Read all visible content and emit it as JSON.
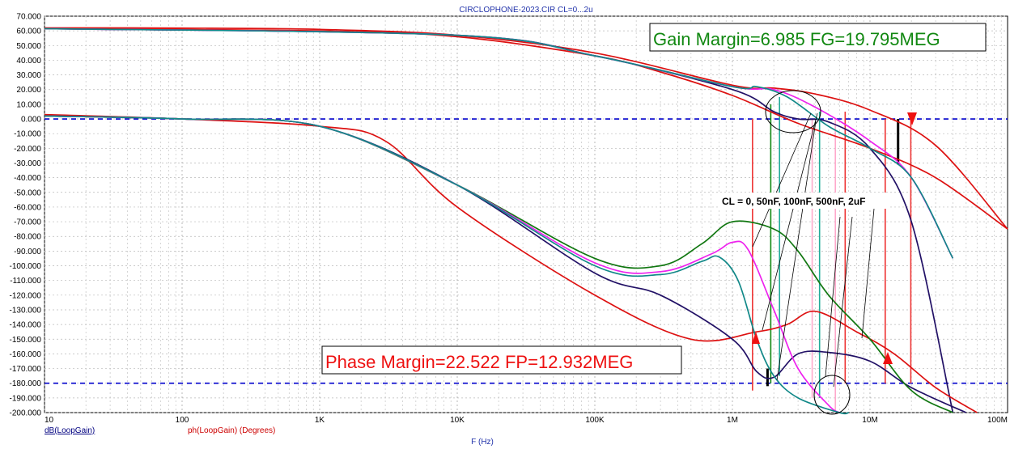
{
  "chart_data": {
    "type": "line",
    "title": "CIRCLOPHONE-2023.CIR CL=0...2u",
    "xlabel": "F (Hz)",
    "x_scale": "log",
    "xlim": [
      10,
      100000000
    ],
    "ylim": [
      -200,
      70
    ],
    "grid": true,
    "y_ticks": [
      70,
      60,
      50,
      40,
      30,
      20,
      10,
      0,
      -10,
      -20,
      -30,
      -40,
      -50,
      -60,
      -70,
      -80,
      -90,
      -100,
      -110,
      -120,
      -130,
      -140,
      -150,
      -160,
      -170,
      -180,
      -190,
      -200
    ],
    "y_tick_labels": [
      "70.000",
      "60.000",
      "50.000",
      "40.000",
      "30.000",
      "20.000",
      "10.000",
      "0.000",
      "-10.000",
      "-20.000",
      "-30.000",
      "-40.000",
      "-50.000",
      "-60.000",
      "-70.000",
      "-80.000",
      "-90.000",
      "-100.000",
      "-110.000",
      "-120.000",
      "-130.000",
      "-140.000",
      "-150.000",
      "-160.000",
      "-170.000",
      "-180.000",
      "-190.000",
      "-200.000"
    ],
    "x_ticks": [
      10,
      100,
      1000,
      10000,
      100000,
      1000000,
      10000000,
      100000000
    ],
    "x_tick_labels": [
      "10",
      "100",
      "1K",
      "10K",
      "100K",
      "1M",
      "10M",
      "100M"
    ],
    "legend": [
      "dB(LoopGain)",
      "ph(LoopGain) (Degrees)"
    ],
    "legend_colors": [
      "#000080",
      "#cc0000"
    ],
    "annotations": {
      "gain_margin": "Gain Margin=6.985 FG=19.795MEG",
      "phase_margin": "Phase Margin=22.522 FP=12.932MEG",
      "cl_values": "CL = 0, 50nF, 100nF, 500nF, 2uF"
    },
    "reference_lines": [
      0,
      -180
    ],
    "series": [
      {
        "color": "#dd1111",
        "kind": "gain",
        "x": [
          10,
          100,
          1000,
          10000,
          100000,
          1000000,
          2000000,
          4000000,
          10000000,
          30000000,
          100000000
        ],
        "y": [
          62,
          61.9,
          61,
          57,
          45,
          23,
          21,
          17,
          6,
          -18,
          -75
        ]
      },
      {
        "color": "#dd1111",
        "kind": "gain",
        "x": [
          10,
          1000,
          10000,
          100000,
          300000,
          1000000,
          3000000,
          10000000,
          30000000,
          100000000
        ],
        "y": [
          61.5,
          60,
          56,
          43,
          32,
          16,
          -3,
          -20,
          -40,
          -75
        ]
      },
      {
        "color": "#221166",
        "kind": "gain",
        "x": [
          10,
          10000,
          100000,
          1000000,
          2000000,
          3000000,
          5000000,
          10000000,
          20000000,
          40000000
        ],
        "y": [
          61.5,
          57,
          43,
          20,
          5,
          0,
          -2,
          -20,
          -70,
          -200
        ]
      },
      {
        "color": "#ee22ee",
        "kind": "gain",
        "x": [
          10,
          10000,
          100000,
          1000000,
          2000000,
          4000000,
          10000000,
          20000000,
          40000000
        ],
        "y": [
          61.5,
          57,
          43,
          22,
          20,
          8,
          -15,
          -40,
          -95
        ]
      },
      {
        "color": "#118888",
        "kind": "gain",
        "x": [
          10,
          10000,
          100000,
          1000000,
          1500000,
          2500000,
          5000000,
          10000000,
          20000000,
          40000000
        ],
        "y": [
          61.5,
          57,
          43,
          22,
          22,
          15,
          -5,
          -20,
          -40,
          -95
        ]
      },
      {
        "color": "#dd1111",
        "kind": "phase",
        "x": [
          10,
          100,
          1000,
          3000,
          10000,
          100000,
          500000,
          1500000,
          2500000,
          4000000,
          8000000,
          15000000,
          30000000,
          60000000
        ],
        "y": [
          3,
          0,
          -5,
          -15,
          -60,
          -120,
          -150,
          -145,
          -140,
          -131,
          -145,
          -160,
          -183,
          -200
        ]
      },
      {
        "color": "#221166",
        "kind": "phase",
        "x": [
          10,
          100,
          1000,
          10000,
          100000,
          300000,
          1000000,
          1500000,
          2000000,
          3000000,
          5000000,
          10000000,
          20000000,
          50000000
        ],
        "y": [
          2,
          0,
          -5,
          -45,
          -105,
          -120,
          -150,
          -172,
          -176,
          -160,
          -159,
          -165,
          -183,
          -200
        ]
      },
      {
        "color": "#117711",
        "kind": "phase",
        "x": [
          10,
          100,
          1000,
          10000,
          100000,
          300000,
          600000,
          1000000,
          2000000,
          3000000,
          5000000,
          10000000,
          20000000,
          40000000
        ],
        "y": [
          2,
          0,
          -5,
          -45,
          -95,
          -100,
          -85,
          -70,
          -75,
          -90,
          -120,
          -150,
          -185,
          -200
        ]
      },
      {
        "color": "#ee22ee",
        "kind": "phase",
        "x": [
          10,
          100,
          1000,
          10000,
          100000,
          300000,
          700000,
          1000000,
          1300000,
          2000000,
          3000000,
          5000000,
          6000000
        ],
        "y": [
          2,
          0,
          -5,
          -45,
          -98,
          -104,
          -92,
          -84,
          -89,
          -130,
          -170,
          -195,
          -200
        ]
      },
      {
        "color": "#118888",
        "kind": "phase",
        "x": [
          10,
          100,
          1000,
          10000,
          100000,
          300000,
          600000,
          800000,
          1100000,
          1500000,
          2000000,
          3000000,
          6000000,
          7000000
        ],
        "y": [
          2,
          0,
          -5,
          -45,
          -100,
          -106,
          -97,
          -94,
          -110,
          -150,
          -175,
          -190,
          -200,
          -200
        ]
      }
    ]
  }
}
